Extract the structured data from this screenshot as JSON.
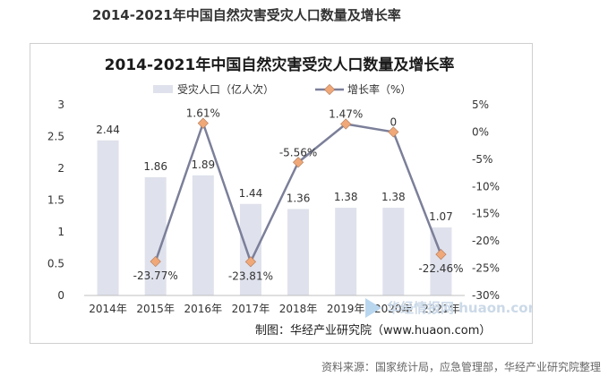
{
  "page": {
    "heading": "2014-2021年中国自然灾害受灾人口数量及增长率",
    "source": "资料来源：国家统计局，应急管理部，华经产业研究院整理"
  },
  "chart_data": {
    "type": "bar+line",
    "title": "2014-2021年中国自然灾害受灾人口数量及增长率",
    "categories": [
      "2014年",
      "2015年",
      "2016年",
      "2017年",
      "2018年",
      "2019年",
      "2020年",
      "2021年"
    ],
    "series": [
      {
        "name": "受灾人口（亿人次）",
        "type": "bar",
        "axis": "left",
        "color": "#dfe1ec",
        "values": [
          2.44,
          1.86,
          1.89,
          1.44,
          1.36,
          1.38,
          1.38,
          1.07
        ],
        "labels": [
          "2.44",
          "1.86",
          "1.89",
          "1.44",
          "1.36",
          "1.38",
          "1.38",
          "1.07"
        ]
      },
      {
        "name": "增长率（%）",
        "type": "line",
        "axis": "right",
        "color": "#7b7f99",
        "marker_color": "#f0a878",
        "values": [
          null,
          -23.77,
          1.61,
          -23.81,
          -5.56,
          1.47,
          0,
          -22.46
        ],
        "labels": [
          "",
          "-23.77%",
          "1.61%",
          "-23.81%",
          "-5.56%",
          "1.47%",
          "0",
          "-22.46%"
        ]
      }
    ],
    "y_left": {
      "range": [
        0,
        3
      ],
      "ticks": [
        "0",
        "0.5",
        "1",
        "1.5",
        "2",
        "2.5",
        "3"
      ]
    },
    "y_right": {
      "range": [
        -30,
        5
      ],
      "ticks": [
        "-30%",
        "-25%",
        "-20%",
        "-15%",
        "-10%",
        "-5%",
        "0%",
        "5%"
      ]
    },
    "legend_position": "top",
    "grid": false,
    "credit": "制图：华经产业研究院（www.huaon.com）",
    "watermark": "华经情报网 huaon.com"
  }
}
